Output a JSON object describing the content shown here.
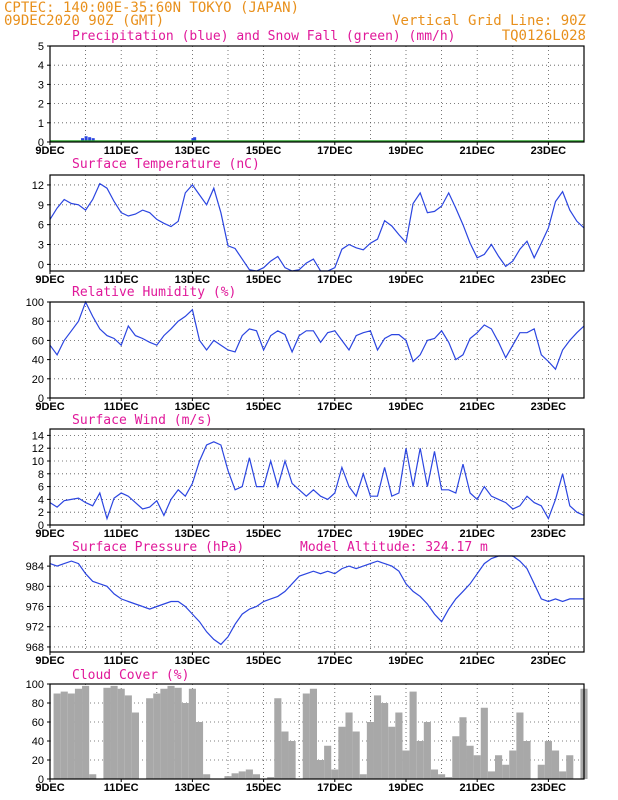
{
  "header": {
    "left_line1": "CPTEC:   140:00E-35:60N  TOKYO (JAPAN)",
    "left_line2": "09DEC2020 90Z (GMT)",
    "right_line1": "Vertical Grid Line: 90Z",
    "right_line2": "TQ0126L028"
  },
  "colors": {
    "header": "#e8901c",
    "title": "#e0189a",
    "line": "#2b45e0",
    "snow": "#2aa02a",
    "cloud": "#a8a8a8"
  },
  "x_axis": {
    "labels": [
      "9DEC",
      "11DEC",
      "13DEC",
      "15DEC",
      "17DEC",
      "19DEC",
      "21DEC",
      "23DEC"
    ],
    "label_days": [
      0,
      2,
      4,
      6,
      8,
      10,
      12,
      14
    ],
    "range_days": [
      0,
      15
    ]
  },
  "panels": {
    "precip": {
      "title": "Precipitation (blue) and Snow Fall (green) (mm/h)",
      "y_ticks": [
        "0",
        "1",
        "2",
        "3",
        "4",
        "5"
      ]
    },
    "temp": {
      "title": "Surface Temperature (nC)",
      "y_ticks": [
        "0",
        "3",
        "6",
        "9",
        "12"
      ]
    },
    "rh": {
      "title": "Relative Humidity (%)",
      "y_ticks": [
        "0",
        "20",
        "40",
        "60",
        "80",
        "100"
      ]
    },
    "wind": {
      "title": "Surface Wind (m/s)",
      "y_ticks": [
        "0",
        "2",
        "4",
        "6",
        "8",
        "10",
        "12",
        "14"
      ]
    },
    "pressure": {
      "title": "Surface Pressure (hPa)",
      "extra": "Model Altitude: 324.17 m",
      "y_ticks": [
        "968",
        "972",
        "976",
        "980",
        "984"
      ]
    },
    "cloud": {
      "title": "Cloud Cover (%)",
      "y_ticks": [
        "0",
        "20",
        "40",
        "60",
        "80",
        "100"
      ]
    }
  },
  "chart_data": [
    {
      "type": "bar",
      "title": "Precipitation (blue) and Snow Fall (green) (mm/h)",
      "ylim": [
        0,
        5
      ],
      "series": [
        {
          "name": "Precipitation",
          "points": [
            [
              0.9,
              0.2
            ],
            [
              1.0,
              0.3
            ],
            [
              1.1,
              0.25
            ],
            [
              1.2,
              0.2
            ],
            [
              4.0,
              0.2
            ],
            [
              4.05,
              0.25
            ]
          ]
        },
        {
          "name": "Snow Fall",
          "points": []
        }
      ]
    },
    {
      "type": "line",
      "title": "Surface Temperature (nC)",
      "ylim": [
        -1,
        13.5
      ],
      "x": [
        0,
        0.2,
        0.4,
        0.6,
        0.8,
        1.0,
        1.2,
        1.4,
        1.6,
        1.8,
        2.0,
        2.2,
        2.4,
        2.6,
        2.8,
        3.0,
        3.2,
        3.4,
        3.6,
        3.8,
        4.0,
        4.2,
        4.4,
        4.6,
        4.8,
        5.0,
        5.2,
        5.4,
        5.6,
        5.8,
        6.0,
        6.2,
        6.4,
        6.6,
        6.8,
        7.0,
        7.2,
        7.4,
        7.6,
        7.8,
        8.0,
        8.2,
        8.4,
        8.6,
        8.8,
        9.0,
        9.2,
        9.4,
        9.6,
        9.8,
        10.0,
        10.2,
        10.4,
        10.6,
        10.8,
        11.0,
        11.2,
        11.4,
        11.6,
        11.8,
        12.0,
        12.2,
        12.4,
        12.6,
        12.8,
        13.0,
        13.2,
        13.4,
        13.6,
        13.8,
        14.0,
        14.2,
        14.4,
        14.6,
        14.8,
        15.0
      ],
      "y": [
        6.8,
        8.5,
        9.8,
        9.2,
        9.0,
        8.2,
        9.8,
        12.2,
        11.5,
        9.5,
        7.8,
        7.3,
        7.6,
        8.2,
        7.8,
        6.8,
        6.2,
        5.7,
        6.5,
        10.8,
        12.0,
        10.5,
        9.0,
        11.5,
        7.8,
        2.8,
        2.4,
        0.8,
        -0.8,
        -1.0,
        -0.5,
        0.5,
        1.2,
        -0.5,
        -1.0,
        -0.8,
        0.2,
        0.8,
        -1.0,
        -1.0,
        -0.5,
        2.3,
        3.0,
        2.5,
        2.2,
        3.2,
        3.8,
        6.6,
        5.8,
        4.5,
        3.3,
        9.2,
        10.8,
        7.8,
        8.0,
        8.8,
        10.8,
        8.5,
        6.0,
        3.2,
        1.0,
        1.5,
        3.0,
        1.2,
        -0.3,
        0.5,
        2.3,
        3.5,
        1.0,
        3.2,
        5.5,
        9.5,
        11.0,
        8.2,
        6.5,
        5.5
      ]
    },
    {
      "type": "line",
      "title": "Relative Humidity (%)",
      "ylim": [
        0,
        100
      ],
      "x": [
        0,
        0.2,
        0.4,
        0.6,
        0.8,
        1.0,
        1.2,
        1.4,
        1.6,
        1.8,
        2.0,
        2.2,
        2.4,
        2.6,
        2.8,
        3.0,
        3.2,
        3.4,
        3.6,
        3.8,
        4.0,
        4.2,
        4.4,
        4.6,
        4.8,
        5.0,
        5.2,
        5.4,
        5.6,
        5.8,
        6.0,
        6.2,
        6.4,
        6.6,
        6.8,
        7.0,
        7.2,
        7.4,
        7.6,
        7.8,
        8.0,
        8.2,
        8.4,
        8.6,
        8.8,
        9.0,
        9.2,
        9.4,
        9.6,
        9.8,
        10.0,
        10.2,
        10.4,
        10.6,
        10.8,
        11.0,
        11.2,
        11.4,
        11.6,
        11.8,
        12.0,
        12.2,
        12.4,
        12.6,
        12.8,
        13.0,
        13.2,
        13.4,
        13.6,
        13.8,
        14.0,
        14.2,
        14.4,
        14.6,
        14.8,
        15.0
      ],
      "y": [
        55,
        45,
        60,
        70,
        80,
        100,
        85,
        72,
        65,
        62,
        55,
        75,
        65,
        62,
        58,
        55,
        65,
        72,
        80,
        85,
        92,
        60,
        50,
        60,
        55,
        50,
        48,
        65,
        72,
        70,
        50,
        65,
        70,
        66,
        48,
        65,
        70,
        70,
        58,
        68,
        70,
        60,
        50,
        65,
        68,
        70,
        50,
        62,
        66,
        66,
        60,
        38,
        45,
        60,
        62,
        70,
        58,
        40,
        45,
        62,
        68,
        76,
        72,
        58,
        42,
        55,
        68,
        68,
        72,
        45,
        38,
        30,
        50,
        60,
        68,
        75
      ]
    },
    {
      "type": "line",
      "title": "Surface Wind (m/s)",
      "ylim": [
        0,
        15
      ],
      "x": [
        0,
        0.2,
        0.4,
        0.6,
        0.8,
        1.0,
        1.2,
        1.4,
        1.6,
        1.8,
        2.0,
        2.2,
        2.4,
        2.6,
        2.8,
        3.0,
        3.2,
        3.4,
        3.6,
        3.8,
        4.0,
        4.2,
        4.4,
        4.6,
        4.8,
        5.0,
        5.2,
        5.4,
        5.6,
        5.8,
        6.0,
        6.2,
        6.4,
        6.6,
        6.8,
        7.0,
        7.2,
        7.4,
        7.6,
        7.8,
        8.0,
        8.2,
        8.4,
        8.6,
        8.8,
        9.0,
        9.2,
        9.4,
        9.6,
        9.8,
        10.0,
        10.2,
        10.4,
        10.6,
        10.8,
        11.0,
        11.2,
        11.4,
        11.6,
        11.8,
        12.0,
        12.2,
        12.4,
        12.6,
        12.8,
        13.0,
        13.2,
        13.4,
        13.6,
        13.8,
        14.0,
        14.2,
        14.4,
        14.6,
        14.8,
        15.0
      ],
      "y": [
        3.5,
        2.8,
        3.8,
        4.0,
        4.2,
        3.5,
        3.0,
        5.0,
        1.0,
        4.2,
        5.0,
        4.5,
        3.5,
        2.5,
        2.8,
        3.8,
        1.5,
        4.0,
        5.5,
        4.5,
        6.5,
        10.0,
        12.5,
        13.0,
        12.5,
        8.5,
        5.5,
        6.0,
        10.5,
        6.0,
        6.0,
        10.0,
        6.0,
        10.0,
        6.5,
        5.5,
        4.5,
        5.5,
        4.5,
        4.0,
        5.0,
        9.0,
        6.0,
        4.5,
        8.0,
        4.5,
        4.5,
        9.0,
        4.5,
        5.0,
        12.0,
        6.0,
        12.0,
        6.0,
        11.5,
        5.5,
        5.5,
        5.0,
        9.5,
        5.0,
        4.0,
        6.0,
        4.5,
        4.0,
        3.5,
        2.5,
        3.0,
        4.5,
        3.5,
        3.0,
        1.0,
        4.0,
        8.0,
        3.0,
        2.0,
        1.5
      ]
    },
    {
      "type": "line",
      "title": "Surface Pressure (hPa)",
      "ylim": [
        967,
        986
      ],
      "x": [
        0,
        0.2,
        0.4,
        0.6,
        0.8,
        1.0,
        1.2,
        1.4,
        1.6,
        1.8,
        2.0,
        2.2,
        2.4,
        2.6,
        2.8,
        3.0,
        3.2,
        3.4,
        3.6,
        3.8,
        4.0,
        4.2,
        4.4,
        4.6,
        4.8,
        5.0,
        5.2,
        5.4,
        5.6,
        5.8,
        6.0,
        6.2,
        6.4,
        6.6,
        6.8,
        7.0,
        7.2,
        7.4,
        7.6,
        7.8,
        8.0,
        8.2,
        8.4,
        8.6,
        8.8,
        9.0,
        9.2,
        9.4,
        9.6,
        9.8,
        10.0,
        10.2,
        10.4,
        10.6,
        10.8,
        11.0,
        11.2,
        11.4,
        11.6,
        11.8,
        12.0,
        12.2,
        12.4,
        12.6,
        12.8,
        13.0,
        13.2,
        13.4,
        13.6,
        13.8,
        14.0,
        14.2,
        14.4,
        14.6,
        14.8,
        15.0
      ],
      "y": [
        984.5,
        984.0,
        984.5,
        985.0,
        984.5,
        982.5,
        981.0,
        980.5,
        980.0,
        978.5,
        977.5,
        977.0,
        976.5,
        976.0,
        975.5,
        976.0,
        976.5,
        977.0,
        977.0,
        976.0,
        974.5,
        973.0,
        971.0,
        969.5,
        968.5,
        970.0,
        972.5,
        974.5,
        975.5,
        976.0,
        977.0,
        977.5,
        978.0,
        979.0,
        980.5,
        982.0,
        982.5,
        983.0,
        982.5,
        983.0,
        982.5,
        983.5,
        984.0,
        983.5,
        984.0,
        984.5,
        985.0,
        984.5,
        984.0,
        983.0,
        980.5,
        979.0,
        978.0,
        976.5,
        974.5,
        973.0,
        975.5,
        977.5,
        979.0,
        980.5,
        982.5,
        984.5,
        985.5,
        986.0,
        986.5,
        986.0,
        985.0,
        983.5,
        980.5,
        977.5,
        977.0,
        977.5,
        977.0,
        977.5,
        977.5,
        977.5
      ]
    },
    {
      "type": "bar",
      "title": "Cloud Cover (%)",
      "ylim": [
        0,
        100
      ],
      "x": [
        0,
        0.2,
        0.4,
        0.6,
        0.8,
        1.0,
        1.2,
        1.4,
        1.6,
        1.8,
        2.0,
        2.2,
        2.4,
        2.6,
        2.8,
        3.0,
        3.2,
        3.4,
        3.6,
        3.8,
        4.0,
        4.2,
        4.4,
        4.6,
        4.8,
        5.0,
        5.2,
        5.4,
        5.6,
        5.8,
        6.0,
        6.2,
        6.4,
        6.6,
        6.8,
        7.0,
        7.2,
        7.4,
        7.6,
        7.8,
        8.0,
        8.2,
        8.4,
        8.6,
        8.8,
        9.0,
        9.2,
        9.4,
        9.6,
        9.8,
        10.0,
        10.2,
        10.4,
        10.6,
        10.8,
        11.0,
        11.2,
        11.4,
        11.6,
        11.8,
        12.0,
        12.2,
        12.4,
        12.6,
        12.8,
        13.0,
        13.2,
        13.4,
        13.6,
        13.8,
        14.0,
        14.2,
        14.4,
        14.6,
        14.8,
        15.0
      ],
      "y": [
        0,
        90,
        92,
        90,
        95,
        98,
        5,
        0,
        96,
        98,
        95,
        88,
        70,
        0,
        85,
        90,
        95,
        98,
        96,
        80,
        95,
        60,
        5,
        0,
        0,
        3,
        6,
        8,
        10,
        5,
        0,
        2,
        85,
        50,
        40,
        0,
        90,
        95,
        20,
        35,
        10,
        55,
        70,
        50,
        5,
        60,
        88,
        80,
        55,
        70,
        30,
        92,
        40,
        60,
        10,
        5,
        2,
        45,
        65,
        35,
        25,
        75,
        8,
        25,
        15,
        30,
        70,
        40,
        0,
        15,
        40,
        30,
        8,
        25,
        0,
        95
      ]
    }
  ]
}
